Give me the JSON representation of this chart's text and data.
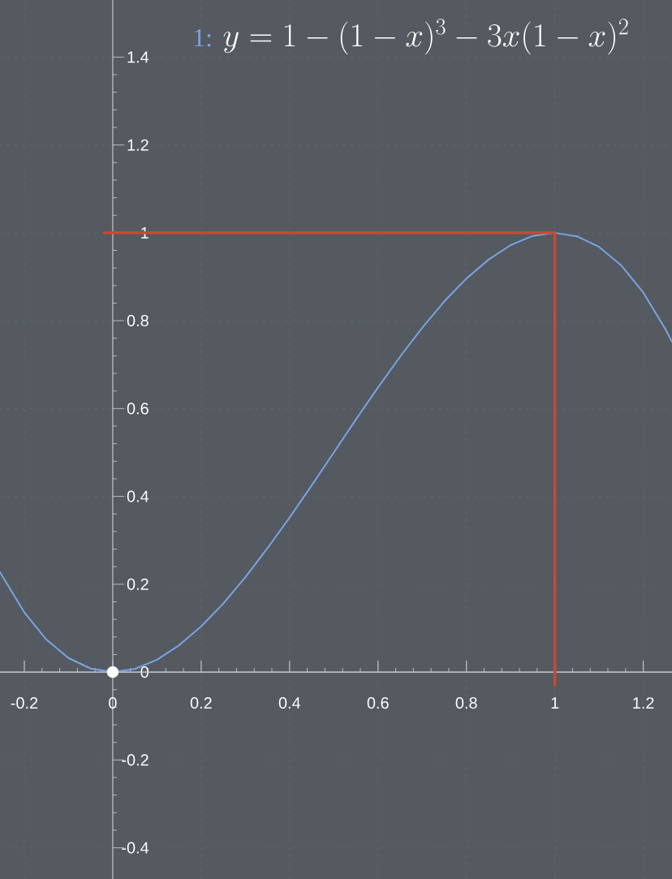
{
  "chart_data": {
    "type": "line",
    "title": "y = 1 - (1 - x)^{3} - 3x(1 - x)^{2}",
    "xlim": [
      -0.255,
      1.265
    ],
    "ylim": [
      -0.471,
      1.53
    ],
    "xticks": [
      -0.2,
      0,
      0.2,
      0.4,
      0.6,
      0.8,
      1,
      1.2
    ],
    "yticks": [
      -0.4,
      -0.2,
      0,
      0.2,
      0.4,
      0.6,
      0.8,
      1,
      1.2,
      1.4
    ],
    "grid": true,
    "series": [
      {
        "name": "1:",
        "color": "#7ba3e3",
        "x": [
          -0.255,
          -0.25,
          -0.2,
          -0.15,
          -0.1,
          -0.05,
          0,
          0.05,
          0.1,
          0.15,
          0.2,
          0.25,
          0.3,
          0.35,
          0.4,
          0.45,
          0.5,
          0.55,
          0.6,
          0.65,
          0.7,
          0.75,
          0.8,
          0.85,
          0.9,
          0.95,
          1,
          1.05,
          1.1,
          1.15,
          1.2,
          1.25,
          1.265
        ],
        "values": [
          0.228,
          0.219,
          0.136,
          0.074,
          0.032,
          0.008,
          0,
          0.007,
          0.028,
          0.061,
          0.104,
          0.156,
          0.216,
          0.282,
          0.352,
          0.425,
          0.5,
          0.575,
          0.648,
          0.718,
          0.784,
          0.844,
          0.896,
          0.939,
          0.972,
          0.993,
          1,
          0.992,
          0.968,
          0.926,
          0.864,
          0.781,
          0.752
        ]
      },
      {
        "color": "#c9483a",
        "x": [
          -0.02,
          1,
          1
        ],
        "values": [
          1,
          1,
          -0.03
        ]
      },
      {
        "type": "scatter",
        "color": "#ffffff",
        "marker": "circle",
        "x": [
          0
        ],
        "values": [
          0
        ]
      }
    ]
  }
}
